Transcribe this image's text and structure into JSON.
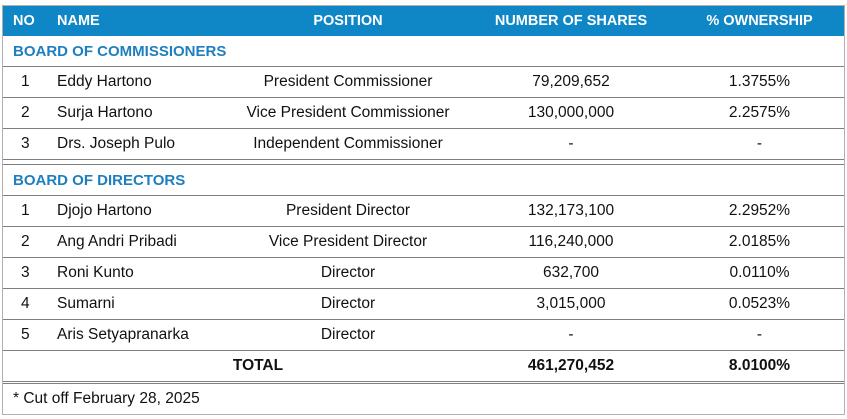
{
  "headers": {
    "no": "NO",
    "name": "NAME",
    "position": "POSITION",
    "shares": "NUMBER OF SHARES",
    "ownership": "% OWNERSHIP"
  },
  "commissioners": {
    "title": "BOARD OF COMMISSIONERS",
    "rows": [
      {
        "no": "1",
        "name": "Eddy Hartono",
        "position": "President Commissioner",
        "shares": "79,209,652",
        "ownership": "1.3755%"
      },
      {
        "no": "2",
        "name": "Surja Hartono",
        "position": "Vice President Commissioner",
        "shares": "130,000,000",
        "ownership": "2.2575%"
      },
      {
        "no": "3",
        "name": "Drs. Joseph Pulo",
        "position": "Independent Commissioner",
        "shares": "-",
        "ownership": "-"
      }
    ]
  },
  "directors": {
    "title": "BOARD OF DIRECTORS",
    "rows": [
      {
        "no": "1",
        "name": "Djojo Hartono",
        "position": "President Director",
        "shares": "132,173,100",
        "ownership": "2.2952%"
      },
      {
        "no": "2",
        "name": "Ang Andri Pribadi",
        "position": "Vice President Director",
        "shares": "116,240,000",
        "ownership": "2.0185%"
      },
      {
        "no": "3",
        "name": "Roni Kunto",
        "position": "Director",
        "shares": "632,700",
        "ownership": "0.0110%"
      },
      {
        "no": "4",
        "name": "Sumarni",
        "position": "Director",
        "shares": "3,015,000",
        "ownership": "0.0523%"
      },
      {
        "no": "5",
        "name": "Aris Setyapranarka",
        "position": "Director",
        "shares": "-",
        "ownership": "-"
      }
    ]
  },
  "total": {
    "label": "TOTAL",
    "shares": "461,270,452",
    "ownership": "8.0100%"
  },
  "footnote": "* Cut off February 28, 2025"
}
